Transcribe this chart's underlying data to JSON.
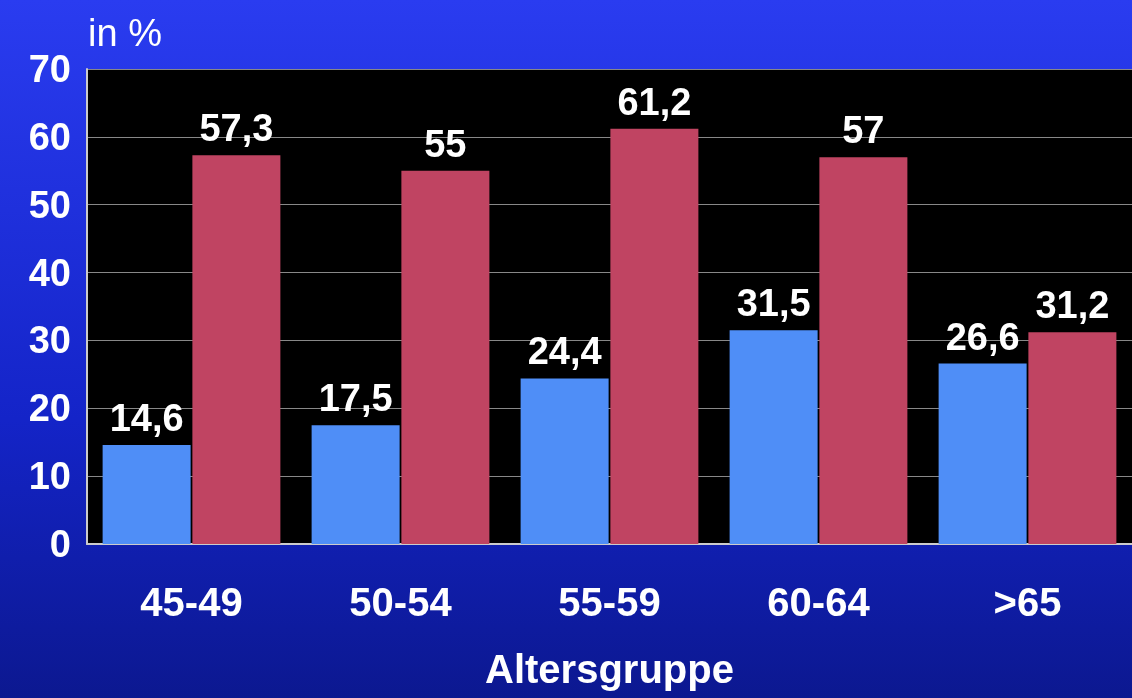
{
  "chart_data": {
    "type": "bar",
    "ylabel": "in %",
    "xlabel": "Altersgruppe",
    "categories": [
      "45-49",
      "50-54",
      "55-59",
      "60-64",
      ">65"
    ],
    "series": [
      {
        "color": "#4f8ef7",
        "values": [
          14.6,
          17.5,
          24.4,
          31.5,
          26.6
        ],
        "value_labels": [
          "14,6",
          "17,5",
          "24,4",
          "31,5",
          "26,6"
        ]
      },
      {
        "color": "#c04462",
        "values": [
          57.3,
          55,
          61.2,
          57,
          31.2
        ],
        "value_labels": [
          "57,3",
          "55",
          "61,2",
          "57",
          "31,2"
        ]
      }
    ],
    "ylim": [
      0,
      70
    ],
    "yticks": [
      0,
      10,
      20,
      30,
      40,
      50,
      60,
      70
    ],
    "grid": "y"
  }
}
